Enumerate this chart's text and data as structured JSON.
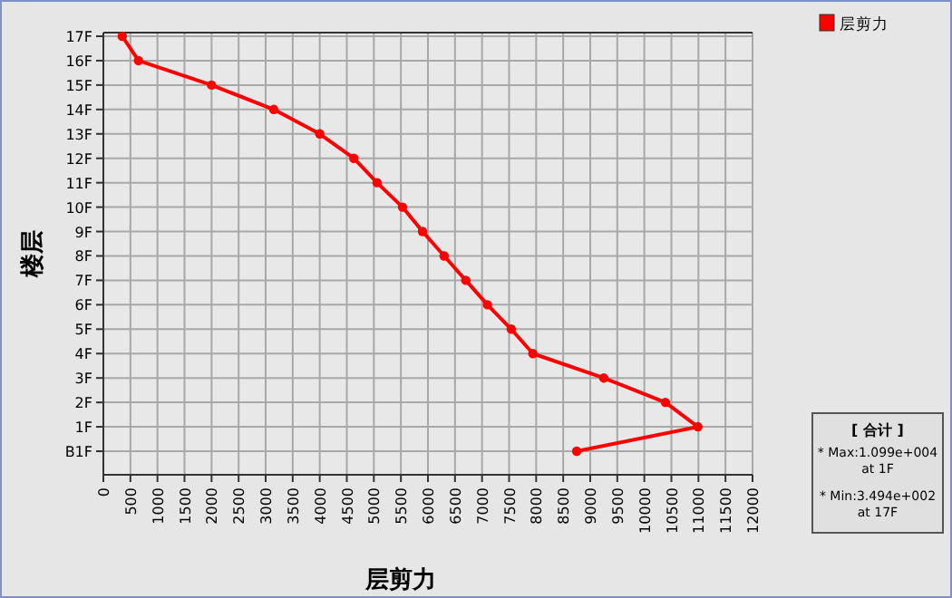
{
  "chart_data": {
    "type": "line",
    "orientation": "horizontal",
    "xlabel": "层剪力",
    "ylabel": "楼层",
    "categories": [
      "17F",
      "16F",
      "15F",
      "14F",
      "13F",
      "12F",
      "11F",
      "10F",
      "9F",
      "8F",
      "7F",
      "6F",
      "5F",
      "4F",
      "3F",
      "2F",
      "1F",
      "B1F"
    ],
    "series": [
      {
        "name": "层剪力",
        "color": "#ff0000",
        "values": [
          349,
          650,
          2000,
          3150,
          4000,
          4630,
          5060,
          5530,
          5900,
          6300,
          6700,
          7100,
          7540,
          7940,
          9250,
          10390,
          10990,
          8750
        ]
      }
    ],
    "xlim": [
      0,
      12000
    ],
    "xticks": [
      0,
      500,
      1000,
      1500,
      2000,
      2500,
      3000,
      3500,
      4000,
      4500,
      5000,
      5500,
      6000,
      6500,
      7000,
      7500,
      8000,
      8500,
      9000,
      9500,
      10000,
      10500,
      11000,
      11500,
      12000
    ],
    "grid": true,
    "marker": "circle",
    "legend": "top right",
    "annotations": [
      "[ 合计 ]",
      "* Max:1.099e+004 at 1F",
      "* Min:3.494e+002 at 17F"
    ]
  }
}
